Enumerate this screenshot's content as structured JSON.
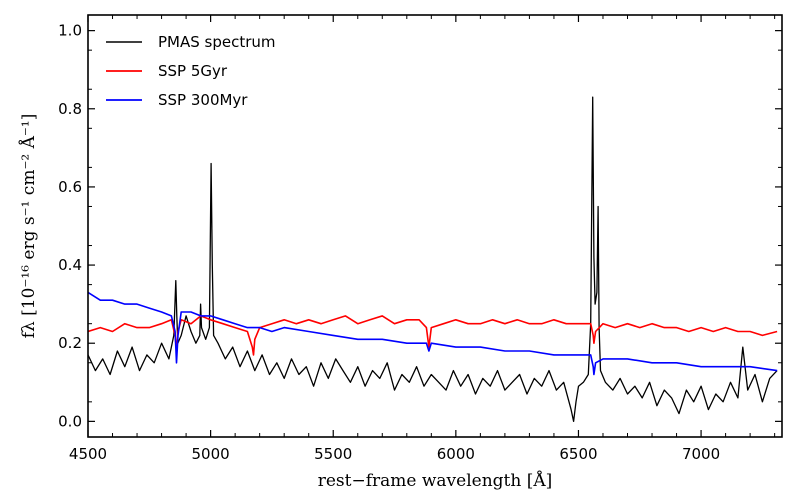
{
  "chart_data": {
    "type": "line",
    "xlabel": "rest−frame wavelength [Å]",
    "ylabel": "fλ [10⁻¹⁶ erg s⁻¹ cm⁻² Å⁻¹]",
    "xlim": [
      4500,
      7330
    ],
    "ylim": [
      -0.04,
      1.04
    ],
    "x_ticks": [
      4500,
      5000,
      5500,
      6000,
      6500,
      7000
    ],
    "y_ticks": [
      0.0,
      0.2,
      0.4,
      0.6,
      0.8,
      1.0
    ],
    "x_tick_labels": [
      "4500",
      "5000",
      "5500",
      "6000",
      "6500",
      "7000"
    ],
    "y_tick_labels": [
      "0.0",
      "0.2",
      "0.4",
      "0.6",
      "0.8",
      "1.0"
    ],
    "legend_position": "top-left",
    "series": [
      {
        "name": "PMAS spectrum",
        "color": "#000000",
        "x": [
          4500,
          4530,
          4560,
          4590,
          4620,
          4650,
          4680,
          4710,
          4740,
          4770,
          4800,
          4830,
          4850,
          4858,
          4862,
          4866,
          4880,
          4900,
          4920,
          4940,
          4956,
          4959,
          4963,
          4980,
          4995,
          5002,
          5007,
          5012,
          5030,
          5060,
          5090,
          5120,
          5150,
          5180,
          5210,
          5240,
          5270,
          5300,
          5330,
          5360,
          5390,
          5420,
          5450,
          5480,
          5510,
          5540,
          5570,
          5600,
          5630,
          5660,
          5690,
          5720,
          5750,
          5780,
          5810,
          5840,
          5870,
          5900,
          5930,
          5960,
          5990,
          6020,
          6050,
          6080,
          6110,
          6140,
          6170,
          6200,
          6230,
          6260,
          6290,
          6320,
          6350,
          6380,
          6410,
          6440,
          6470,
          6480,
          6490,
          6500,
          6520,
          6540,
          6550,
          6558,
          6563,
          6568,
          6575,
          6580,
          6584,
          6590,
          6610,
          6640,
          6670,
          6700,
          6730,
          6760,
          6790,
          6820,
          6850,
          6880,
          6910,
          6940,
          6970,
          7000,
          7030,
          7060,
          7090,
          7120,
          7150,
          7170,
          7190,
          7220,
          7250,
          7280,
          7310
        ],
        "y": [
          0.17,
          0.13,
          0.16,
          0.12,
          0.18,
          0.14,
          0.19,
          0.13,
          0.17,
          0.15,
          0.2,
          0.16,
          0.22,
          0.36,
          0.27,
          0.2,
          0.22,
          0.27,
          0.23,
          0.2,
          0.22,
          0.3,
          0.24,
          0.21,
          0.24,
          0.66,
          0.4,
          0.22,
          0.2,
          0.16,
          0.19,
          0.14,
          0.18,
          0.13,
          0.17,
          0.12,
          0.15,
          0.11,
          0.16,
          0.12,
          0.14,
          0.09,
          0.15,
          0.11,
          0.16,
          0.13,
          0.1,
          0.14,
          0.09,
          0.13,
          0.11,
          0.15,
          0.08,
          0.12,
          0.1,
          0.14,
          0.09,
          0.12,
          0.1,
          0.08,
          0.13,
          0.09,
          0.12,
          0.07,
          0.11,
          0.09,
          0.13,
          0.08,
          0.1,
          0.12,
          0.07,
          0.11,
          0.09,
          0.13,
          0.08,
          0.1,
          0.03,
          0.0,
          0.05,
          0.09,
          0.1,
          0.12,
          0.25,
          0.83,
          0.42,
          0.3,
          0.33,
          0.55,
          0.24,
          0.13,
          0.1,
          0.08,
          0.11,
          0.07,
          0.09,
          0.06,
          0.1,
          0.04,
          0.08,
          0.06,
          0.02,
          0.08,
          0.05,
          0.09,
          0.03,
          0.07,
          0.05,
          0.1,
          0.06,
          0.19,
          0.08,
          0.12,
          0.05,
          0.11,
          0.13
        ]
      },
      {
        "name": "SSP 5Gyr",
        "color": "#ff0000",
        "x": [
          4500,
          4550,
          4600,
          4650,
          4700,
          4750,
          4800,
          4840,
          4855,
          4861,
          4867,
          4880,
          4920,
          4960,
          5000,
          5050,
          5100,
          5150,
          5170,
          5175,
          5180,
          5200,
          5250,
          5300,
          5350,
          5400,
          5450,
          5500,
          5550,
          5600,
          5650,
          5700,
          5750,
          5800,
          5850,
          5880,
          5890,
          5900,
          5950,
          6000,
          6050,
          6100,
          6150,
          6200,
          6250,
          6300,
          6350,
          6400,
          6450,
          6500,
          6550,
          6560,
          6563,
          6570,
          6600,
          6650,
          6700,
          6750,
          6800,
          6850,
          6900,
          6950,
          7000,
          7050,
          7100,
          7150,
          7200,
          7250,
          7310
        ],
        "y": [
          0.23,
          0.24,
          0.23,
          0.25,
          0.24,
          0.24,
          0.25,
          0.26,
          0.22,
          0.18,
          0.23,
          0.26,
          0.25,
          0.27,
          0.26,
          0.25,
          0.24,
          0.23,
          0.19,
          0.17,
          0.21,
          0.24,
          0.25,
          0.26,
          0.25,
          0.26,
          0.25,
          0.26,
          0.27,
          0.25,
          0.26,
          0.27,
          0.25,
          0.26,
          0.26,
          0.24,
          0.19,
          0.24,
          0.25,
          0.26,
          0.25,
          0.25,
          0.26,
          0.25,
          0.26,
          0.25,
          0.25,
          0.26,
          0.25,
          0.25,
          0.25,
          0.22,
          0.2,
          0.23,
          0.25,
          0.24,
          0.25,
          0.24,
          0.25,
          0.24,
          0.24,
          0.23,
          0.24,
          0.23,
          0.24,
          0.23,
          0.23,
          0.22,
          0.23
        ]
      },
      {
        "name": "SSP 300Myr",
        "color": "#0000ff",
        "x": [
          4500,
          4550,
          4600,
          4650,
          4700,
          4750,
          4800,
          4840,
          4855,
          4861,
          4867,
          4880,
          4920,
          4960,
          5000,
          5050,
          5100,
          5150,
          5200,
          5250,
          5300,
          5400,
          5500,
          5600,
          5700,
          5800,
          5880,
          5890,
          5900,
          6000,
          6100,
          6200,
          6300,
          6400,
          6500,
          6550,
          6560,
          6563,
          6570,
          6600,
          6700,
          6800,
          6900,
          7000,
          7100,
          7200,
          7310
        ],
        "y": [
          0.33,
          0.31,
          0.31,
          0.3,
          0.3,
          0.29,
          0.28,
          0.27,
          0.23,
          0.15,
          0.22,
          0.28,
          0.28,
          0.27,
          0.27,
          0.26,
          0.25,
          0.24,
          0.24,
          0.23,
          0.24,
          0.23,
          0.22,
          0.21,
          0.21,
          0.2,
          0.2,
          0.18,
          0.2,
          0.19,
          0.19,
          0.18,
          0.18,
          0.17,
          0.17,
          0.17,
          0.14,
          0.12,
          0.15,
          0.16,
          0.16,
          0.15,
          0.15,
          0.14,
          0.14,
          0.14,
          0.13
        ]
      }
    ]
  }
}
